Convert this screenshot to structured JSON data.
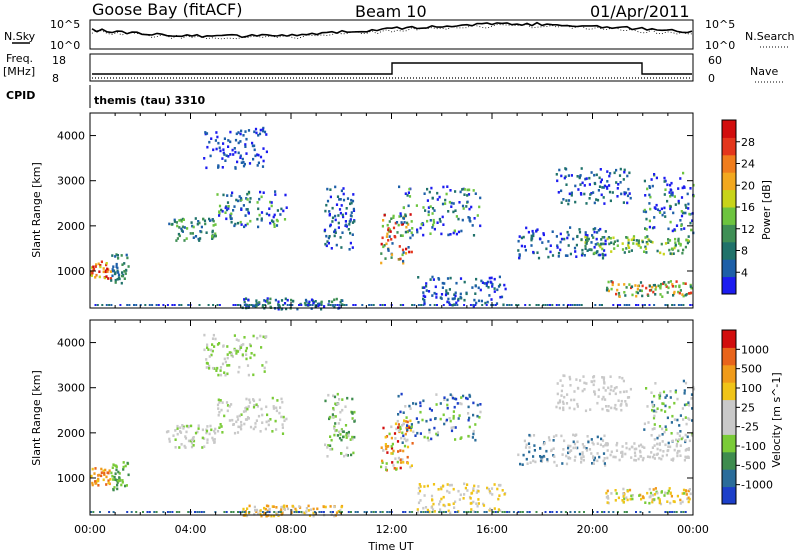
{
  "header": {
    "station": "Goose Bay (fitACF)",
    "beam": "Beam 10",
    "date": "01/Apr/2011"
  },
  "status_panels": {
    "nsky_label": "N.Sky",
    "nsearch_label": "N.Search",
    "noise_ticks_left": [
      "10^5",
      "10^0"
    ],
    "noise_ticks_right": [
      "10^5",
      "10^0"
    ],
    "freq_label": "Freq.",
    "freq_unit": "[MHz]",
    "freq_ticks": [
      "18",
      "8"
    ],
    "nave_label": "Nave",
    "nave_ticks": [
      "60",
      "0"
    ],
    "cpid_label": "CPID",
    "cpid_text": "themis (tau) 3310"
  },
  "x_axis": {
    "label": "Time UT",
    "ticks": [
      "00:00",
      "04:00",
      "08:00",
      "12:00",
      "16:00",
      "20:00",
      "00:00"
    ]
  },
  "colors": {
    "power_scale": [
      "#1c1cf0",
      "#1d5fa8",
      "#20726a",
      "#3f8f55",
      "#6dc43f",
      "#c8d419",
      "#f2a81f",
      "#f07d1d",
      "#e4361c",
      "#d10d0d"
    ],
    "velocity_scale": [
      "#1c3fc9",
      "#2a6c9a",
      "#3e8c4e",
      "#7acb37",
      "#c9c9c9",
      "#c9c9c9",
      "#f0c419",
      "#f09b1a",
      "#e8641b",
      "#d10d0d"
    ]
  },
  "chart_data": [
    {
      "type": "heatmap",
      "title": "Power",
      "xlabel": "Time UT",
      "ylabel": "Slant Range [km]",
      "xlim": [
        0,
        24
      ],
      "ylim": [
        180,
        4500
      ],
      "yticks": [
        "1000",
        "2000",
        "3000",
        "4000"
      ],
      "colorbar": {
        "label": "Power [dB]",
        "ticks": [
          "28",
          "24",
          "20",
          "16",
          "12",
          "8",
          "4"
        ],
        "range": [
          0,
          30
        ]
      },
      "regions": [
        {
          "t": [
            0.0,
            0.8
          ],
          "r": [
            850,
            1250
          ],
          "levels": [
            5,
            6,
            7,
            8,
            9
          ]
        },
        {
          "t": [
            0.8,
            1.5
          ],
          "r": [
            750,
            1400
          ],
          "levels": [
            1,
            2,
            3
          ]
        },
        {
          "t": [
            3.0,
            5.0
          ],
          "r": [
            1700,
            2200
          ],
          "levels": [
            1,
            2,
            3,
            4
          ]
        },
        {
          "t": [
            5.0,
            7.8
          ],
          "r": [
            2000,
            2800
          ],
          "levels": [
            0,
            1,
            2,
            4
          ]
        },
        {
          "t": [
            4.5,
            7.0
          ],
          "r": [
            3300,
            4200
          ],
          "levels": [
            0,
            1
          ]
        },
        {
          "t": [
            6.0,
            10.0
          ],
          "r": [
            180,
            420
          ],
          "levels": [
            0,
            1,
            2,
            3
          ]
        },
        {
          "t": [
            9.3,
            10.5
          ],
          "r": [
            1500,
            2900
          ],
          "levels": [
            0,
            1,
            2
          ]
        },
        {
          "t": [
            11.5,
            12.8
          ],
          "r": [
            1200,
            2300
          ],
          "levels": [
            1,
            3,
            4,
            6,
            8,
            9
          ]
        },
        {
          "t": [
            12.2,
            15.5
          ],
          "r": [
            1800,
            2900
          ],
          "levels": [
            0,
            1,
            2,
            4
          ]
        },
        {
          "t": [
            13.0,
            16.5
          ],
          "r": [
            250,
            900
          ],
          "levels": [
            0,
            1,
            2
          ]
        },
        {
          "t": [
            17.0,
            20.5
          ],
          "r": [
            1300,
            2000
          ],
          "levels": [
            0,
            1,
            2
          ]
        },
        {
          "t": [
            18.5,
            21.5
          ],
          "r": [
            2500,
            3300
          ],
          "levels": [
            0,
            1,
            2
          ]
        },
        {
          "t": [
            19.5,
            23.8
          ],
          "r": [
            1400,
            1800
          ],
          "levels": [
            2,
            3,
            4,
            5
          ]
        },
        {
          "t": [
            20.5,
            23.9
          ],
          "r": [
            450,
            800
          ],
          "levels": [
            2,
            3,
            4,
            6,
            8
          ]
        },
        {
          "t": [
            22.0,
            24.0
          ],
          "r": [
            1800,
            3200
          ],
          "levels": [
            0,
            1,
            2,
            4
          ]
        }
      ]
    },
    {
      "type": "heatmap",
      "title": "Velocity",
      "xlabel": "Time UT",
      "ylabel": "Slant Range [km]",
      "xlim": [
        0,
        24
      ],
      "ylim": [
        180,
        4500
      ],
      "yticks": [
        "1000",
        "2000",
        "3000",
        "4000"
      ],
      "colorbar": {
        "label": "Velocity [m s^-1]",
        "ticks": [
          "1000",
          "500",
          "100",
          "25",
          "-25",
          "-100",
          "-500",
          "-1000"
        ],
        "range": [
          -1000,
          1000
        ]
      },
      "regions": [
        {
          "t": [
            0.0,
            0.8
          ],
          "r": [
            850,
            1250
          ],
          "levels": [
            6,
            7,
            8
          ]
        },
        {
          "t": [
            0.8,
            1.5
          ],
          "r": [
            750,
            1400
          ],
          "levels": [
            2,
            3
          ]
        },
        {
          "t": [
            3.0,
            5.0
          ],
          "r": [
            1700,
            2200
          ],
          "levels": [
            4,
            4,
            5,
            3
          ]
        },
        {
          "t": [
            5.0,
            7.8
          ],
          "r": [
            2000,
            2800
          ],
          "levels": [
            4,
            5,
            4,
            3
          ]
        },
        {
          "t": [
            4.5,
            7.0
          ],
          "r": [
            3300,
            4200
          ],
          "levels": [
            4,
            3
          ]
        },
        {
          "t": [
            6.0,
            10.0
          ],
          "r": [
            180,
            420
          ],
          "levels": [
            4,
            6,
            7
          ]
        },
        {
          "t": [
            9.3,
            10.5
          ],
          "r": [
            1500,
            2900
          ],
          "levels": [
            3,
            4,
            2
          ]
        },
        {
          "t": [
            11.5,
            12.8
          ],
          "r": [
            1200,
            2300
          ],
          "levels": [
            4,
            6,
            7,
            8,
            9,
            3
          ]
        },
        {
          "t": [
            12.2,
            15.5
          ],
          "r": [
            1800,
            2900
          ],
          "levels": [
            0,
            1,
            3,
            4
          ]
        },
        {
          "t": [
            13.0,
            16.5
          ],
          "r": [
            250,
            900
          ],
          "levels": [
            4,
            6
          ]
        },
        {
          "t": [
            17.0,
            20.5
          ],
          "r": [
            1300,
            2000
          ],
          "levels": [
            1,
            4,
            5
          ]
        },
        {
          "t": [
            18.5,
            21.5
          ],
          "r": [
            2500,
            3300
          ],
          "levels": [
            4,
            5
          ]
        },
        {
          "t": [
            19.5,
            23.8
          ],
          "r": [
            1400,
            1800
          ],
          "levels": [
            4,
            5,
            4
          ]
        },
        {
          "t": [
            20.5,
            23.9
          ],
          "r": [
            450,
            800
          ],
          "levels": [
            6,
            7,
            4,
            3
          ]
        },
        {
          "t": [
            22.0,
            24.0
          ],
          "r": [
            1800,
            3200
          ],
          "levels": [
            4,
            3,
            1
          ]
        }
      ]
    }
  ]
}
